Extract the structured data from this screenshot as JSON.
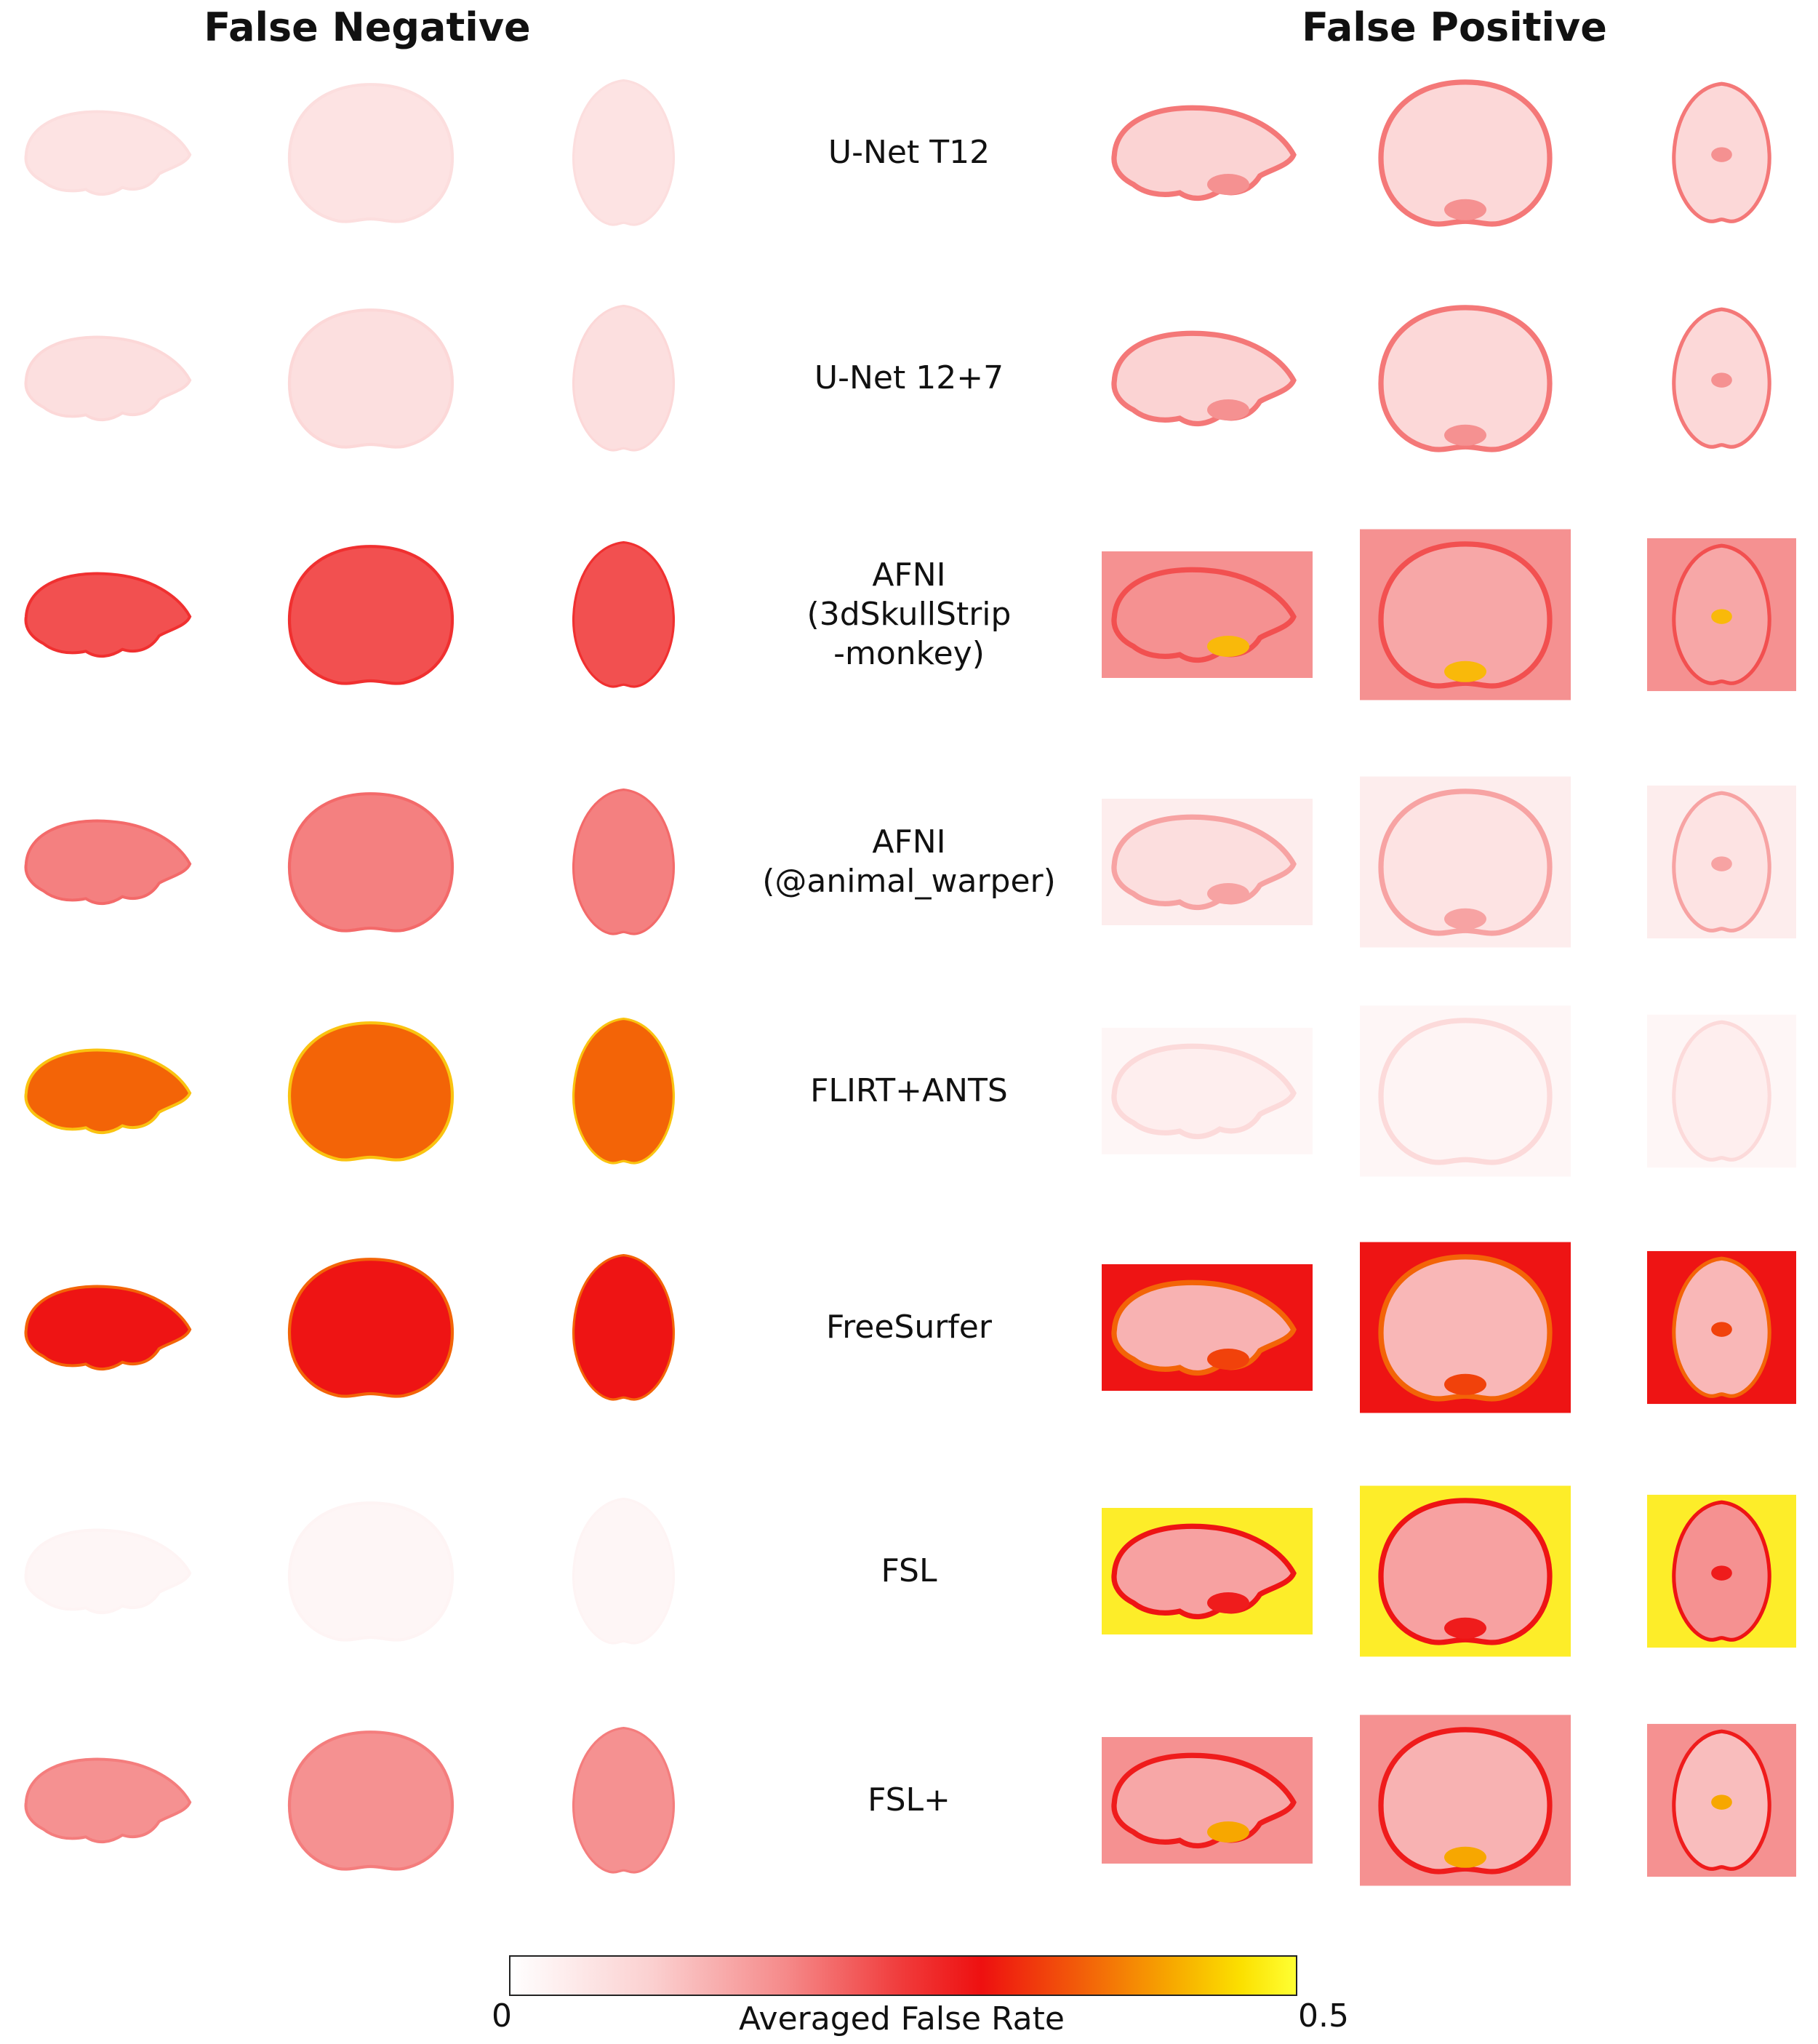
{
  "headers": {
    "false_negative": "False Negative",
    "false_positive": "False Positive"
  },
  "rows": [
    {
      "label": "U-Net T12",
      "fn": 0.03,
      "fp": [
        0.08,
        0.07,
        0.07
      ],
      "fp_bg": 0.0,
      "fp_hot": 0.12,
      "fp_rim": 0.15
    },
    {
      "label": "U-Net 12+7",
      "fn": 0.035,
      "fp": [
        0.08,
        0.07,
        0.07
      ],
      "fp_bg": 0.0,
      "fp_hot": 0.12,
      "fp_rim": 0.15
    },
    {
      "label": "AFNI\n(3dSkullStrip\n-monkey)",
      "fn": 0.2,
      "fp": [
        0.2,
        0.16,
        0.16
      ],
      "fp_bg": 0.12,
      "fp_hot": 0.42,
      "fp_rim": 0.2
    },
    {
      "label": "AFNI\n(@animal_warper)",
      "fn": 0.14,
      "fp": [
        0.06,
        0.05,
        0.05
      ],
      "fp_bg": 0.02,
      "fp_hot": 0.1,
      "fp_rim": 0.1
    },
    {
      "label": "FLIRT+ANTS",
      "fn": 0.36,
      "fp": [
        0.03,
        0.02,
        0.03
      ],
      "fp_bg": 0.01,
      "fp_hot": 0.05,
      "fp_rim": 0.04
    },
    {
      "label": "FreeSurfer",
      "fn": 0.3,
      "fp": [
        0.14,
        0.13,
        0.13
      ],
      "fp_bg": 0.3,
      "fp_hot": 0.34,
      "fp_rim": 0.36
    },
    {
      "label": "FSL",
      "fn": 0.01,
      "fp": [
        0.17,
        0.17,
        0.2
      ],
      "fp_bg": 0.48,
      "fp_hot": 0.28,
      "fp_rim": 0.3
    },
    {
      "label": "FSL+",
      "fn": 0.12,
      "fp": [
        0.16,
        0.14,
        0.12
      ],
      "fp_bg": 0.12,
      "fp_hot": 0.4,
      "fp_rim": 0.28
    }
  ],
  "views": [
    "sagittal",
    "coronal",
    "axial"
  ],
  "colorbar": {
    "min": "0",
    "max": "0.5",
    "label": "Averaged False Rate",
    "stops": [
      "#ffffff",
      "#f03a3a",
      "#ee1010",
      "#f7a700",
      "#ffff33"
    ]
  }
}
